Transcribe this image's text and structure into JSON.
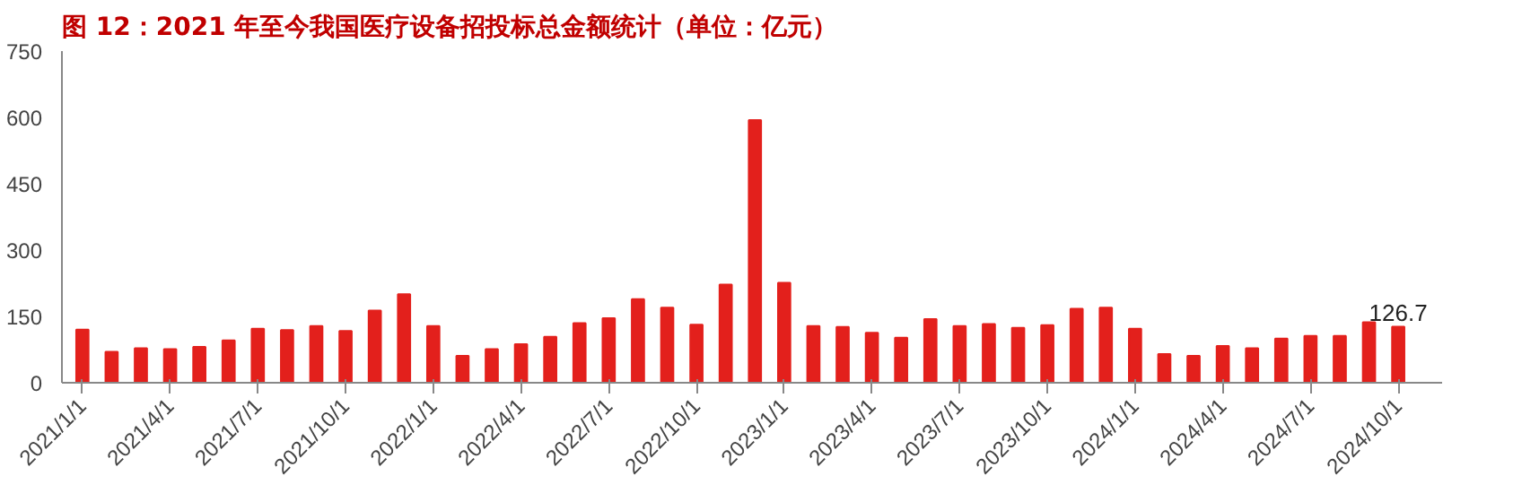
{
  "chart_data": {
    "type": "bar",
    "title": "图 12：2021 年至今我国医疗设备招投标总金额统计（单位：亿元）",
    "categories": [
      "2021/1/1",
      null,
      null,
      "2021/4/1",
      null,
      null,
      "2021/7/1",
      null,
      null,
      "2021/10/1",
      null,
      null,
      "2022/1/1",
      null,
      null,
      "2022/4/1",
      null,
      null,
      "2022/7/1",
      null,
      null,
      "2022/10/1",
      null,
      null,
      "2023/1/1",
      null,
      null,
      "2023/4/1",
      null,
      null,
      "2023/7/1",
      null,
      null,
      "2023/10/1",
      null,
      null,
      "2024/1/1",
      null,
      null,
      "2024/4/1",
      null,
      null,
      "2024/7/1",
      null,
      null,
      "2024/10/1"
    ],
    "values": [
      120,
      70,
      78,
      76,
      81,
      96,
      122,
      119,
      128,
      117,
      163,
      200,
      128,
      61,
      76,
      87,
      104,
      135,
      146,
      189,
      170,
      131,
      222,
      594,
      226,
      128,
      126,
      113,
      102,
      144,
      128,
      133,
      124,
      130,
      167,
      170,
      122,
      65,
      61,
      83,
      78,
      100,
      106,
      106,
      137,
      126.7
    ],
    "value_labels": [
      null,
      null,
      null,
      null,
      null,
      null,
      null,
      null,
      null,
      null,
      null,
      null,
      null,
      null,
      null,
      null,
      null,
      null,
      null,
      null,
      null,
      null,
      null,
      null,
      null,
      null,
      null,
      null,
      null,
      null,
      null,
      null,
      null,
      null,
      null,
      null,
      null,
      null,
      null,
      null,
      null,
      null,
      null,
      null,
      null,
      "126.7"
    ],
    "color": "#e3201c",
    "ylim": [
      0,
      750
    ],
    "yticks": [
      0,
      150,
      300,
      450,
      600,
      750
    ],
    "grid": false
  }
}
